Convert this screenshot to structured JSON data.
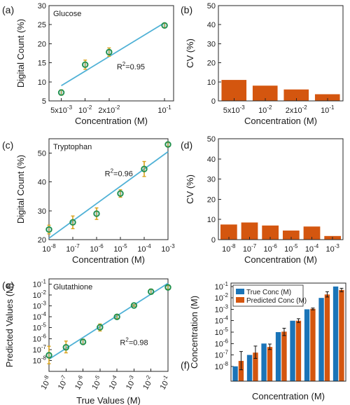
{
  "chart_data": [
    {
      "panel_label": "(a)",
      "title": "Glucose",
      "type": "scatter",
      "xscale": "log",
      "xlim": [
        0.0035,
        0.13
      ],
      "xticks": [
        {
          "v": 0.005,
          "label": "5x10",
          "sup": "-3"
        },
        {
          "v": 0.01,
          "label": "10",
          "sup": "-2"
        },
        {
          "v": 0.02,
          "label": "2x10",
          "sup": "-2"
        },
        {
          "v": 0.1,
          "label": "10",
          "sup": "-1"
        }
      ],
      "ylim": [
        5,
        30
      ],
      "yticks": [
        5,
        10,
        15,
        20,
        25,
        30
      ],
      "xlabel": "Concentration (M)",
      "ylabel": "Digital Count (%)",
      "points": [
        {
          "x": 0.005,
          "y": 7.2,
          "err": 0.7
        },
        {
          "x": 0.01,
          "y": 14.5,
          "err": 1.2
        },
        {
          "x": 0.02,
          "y": 17.8,
          "err": 1.1
        },
        {
          "x": 0.1,
          "y": 24.8,
          "err": 0.6
        }
      ],
      "fit": {
        "x": [
          0.005,
          0.1
        ],
        "y": [
          9.0,
          25.5
        ]
      },
      "annotation": {
        "text": "R",
        "sup": "2",
        "tail": "=0.95",
        "x": 0.025,
        "y": 13.3
      },
      "colors": {
        "marker": "#2fa5c8",
        "marker_edge": "#1f8f4a",
        "error": "#d9a21b",
        "fit": "#4fb1d6"
      }
    },
    {
      "panel_label": "(b)",
      "type": "bar",
      "categories": [
        {
          "label": "5x10",
          "sup": "-3"
        },
        {
          "label": "10",
          "sup": "-2"
        },
        {
          "label": "2x10",
          "sup": "-2"
        },
        {
          "label": "10",
          "sup": "-1"
        }
      ],
      "values": [
        11.0,
        8.0,
        6.0,
        3.5
      ],
      "ylim": [
        0,
        50
      ],
      "yticks": [
        0,
        10,
        20,
        30,
        40,
        50
      ],
      "xlabel": "Concentration (M)",
      "ylabel": "CV (%)",
      "colors": {
        "bar": "#d4560f"
      }
    },
    {
      "panel_label": "(c)",
      "title": "Tryptophan",
      "type": "scatter",
      "xscale": "log",
      "xlim": [
        1e-08,
        0.001
      ],
      "xticks": [
        {
          "v": 1e-08,
          "label": "10",
          "sup": "-8"
        },
        {
          "v": 1e-07,
          "label": "10",
          "sup": "-7"
        },
        {
          "v": 1e-06,
          "label": "10",
          "sup": "-6"
        },
        {
          "v": 1e-05,
          "label": "10",
          "sup": "-5"
        },
        {
          "v": 0.0001,
          "label": "10",
          "sup": "-4"
        },
        {
          "v": 0.001,
          "label": "10",
          "sup": "-3"
        }
      ],
      "ylim": [
        20,
        55
      ],
      "yticks": [
        20,
        30,
        40,
        50
      ],
      "xlabel": "Concentration (M)",
      "ylabel": "Digital Count (%)",
      "points": [
        {
          "x": 1e-08,
          "y": 23.5,
          "err": 1.5
        },
        {
          "x": 1e-07,
          "y": 26.0,
          "err": 2.2
        },
        {
          "x": 1e-06,
          "y": 29.0,
          "err": 2.0
        },
        {
          "x": 1e-05,
          "y": 36.0,
          "err": 1.3
        },
        {
          "x": 0.0001,
          "y": 44.5,
          "err": 2.6
        },
        {
          "x": 0.001,
          "y": 53.0,
          "err": 0.6
        }
      ],
      "fit": {
        "x": [
          1e-08,
          0.001
        ],
        "y": [
          20.5,
          50.5
        ]
      },
      "annotation": {
        "text": "R",
        "sup": "2",
        "tail": "=0.96",
        "x": 2.2e-06,
        "y": 42.0
      },
      "colors": {
        "marker": "#2fa5c8",
        "marker_edge": "#1f8f4a",
        "error": "#d9a21b",
        "fit": "#4fb1d6"
      }
    },
    {
      "panel_label": "(d)",
      "type": "bar",
      "categories": [
        {
          "label": "10",
          "sup": "-8"
        },
        {
          "label": "10",
          "sup": "-7"
        },
        {
          "label": "10",
          "sup": "-6"
        },
        {
          "label": "10",
          "sup": "-5"
        },
        {
          "label": "10",
          "sup": "-4"
        },
        {
          "label": "10",
          "sup": "-3"
        }
      ],
      "values": [
        7.5,
        8.5,
        7.0,
        4.5,
        6.5,
        1.8
      ],
      "ylim": [
        0,
        50
      ],
      "yticks": [
        0,
        10,
        20,
        30,
        40,
        50
      ],
      "xlabel": "Concentration (M)",
      "ylabel": "CV (%)",
      "colors": {
        "bar": "#d4560f"
      }
    },
    {
      "panel_label": "(e)",
      "title": "Glutathione",
      "type": "scatter",
      "xscale": "log",
      "yscale": "log",
      "xlim": [
        1e-08,
        0.1
      ],
      "ylim": [
        1e-09,
        0.3
      ],
      "xticks": [
        {
          "v": 1e-08,
          "label": "10",
          "sup": "-8"
        },
        {
          "v": 1e-07,
          "label": "10",
          "sup": "-7"
        },
        {
          "v": 1e-06,
          "label": "10",
          "sup": "-6"
        },
        {
          "v": 1e-05,
          "label": "10",
          "sup": "-5"
        },
        {
          "v": 0.0001,
          "label": "10",
          "sup": "-4"
        },
        {
          "v": 0.001,
          "label": "10",
          "sup": "-3"
        },
        {
          "v": 0.01,
          "label": "10",
          "sup": "-2"
        },
        {
          "v": 0.1,
          "label": "10",
          "sup": "-1"
        }
      ],
      "yticks": [
        {
          "v": 1e-08,
          "label": "10",
          "sup": "-8"
        },
        {
          "v": 1e-07,
          "label": "10",
          "sup": "-7"
        },
        {
          "v": 1e-06,
          "label": "10",
          "sup": "-6"
        },
        {
          "v": 1e-05,
          "label": "10",
          "sup": "-5"
        },
        {
          "v": 0.0001,
          "label": "10",
          "sup": "-4"
        },
        {
          "v": 0.001,
          "label": "10",
          "sup": "-3"
        },
        {
          "v": 0.01,
          "label": "10",
          "sup": "-2"
        },
        {
          "v": 0.1,
          "label": "10",
          "sup": "-1"
        }
      ],
      "xlabel": "True Values (M)",
      "ylabel": "Predicted Values (M)",
      "points": [
        {
          "x": 1e-08,
          "y": 3e-08,
          "lo": 5e-09,
          "hi": 2e-07
        },
        {
          "x": 1e-07,
          "y": 1.6e-07,
          "lo": 5e-08,
          "hi": 6e-07
        },
        {
          "x": 1e-06,
          "y": 5e-07,
          "lo": 3e-07,
          "hi": 9e-07
        },
        {
          "x": 1e-05,
          "y": 1.1e-05,
          "lo": 5e-06,
          "hi": 2.2e-05
        },
        {
          "x": 0.0001,
          "y": 0.0001,
          "lo": 7e-05,
          "hi": 0.00015
        },
        {
          "x": 0.001,
          "y": 0.0011,
          "lo": 0.0009,
          "hi": 0.0013
        },
        {
          "x": 0.01,
          "y": 0.02,
          "lo": 0.012,
          "hi": 0.035
        },
        {
          "x": 0.1,
          "y": 0.05,
          "lo": 0.035,
          "hi": 0.07
        }
      ],
      "fit": {
        "x": [
          1e-08,
          0.1
        ],
        "y": [
          1.3e-08,
          0.12
        ]
      },
      "annotation": {
        "text": "R",
        "sup": "2",
        "tail": "=0.98",
        "x": 0.00015,
        "y": 2.5e-07
      },
      "colors": {
        "marker": "#2fa5c8",
        "marker_edge": "#1f8f4a",
        "error": "#d9a21b",
        "fit": "#4fb1d6"
      }
    },
    {
      "panel_label": "(f)",
      "type": "bar",
      "yscale": "log",
      "ylim": [
        5e-10,
        0.2
      ],
      "yticks": [
        {
          "v": 1e-08,
          "label": "10",
          "sup": "-8"
        },
        {
          "v": 1e-07,
          "label": "10",
          "sup": "-7"
        },
        {
          "v": 1e-06,
          "label": "10",
          "sup": "-6"
        },
        {
          "v": 1e-05,
          "label": "10",
          "sup": "-5"
        },
        {
          "v": 0.0001,
          "label": "10",
          "sup": "-4"
        },
        {
          "v": 0.001,
          "label": "10",
          "sup": "-3"
        },
        {
          "v": 0.01,
          "label": "10",
          "sup": "-2"
        },
        {
          "v": 0.1,
          "label": "10",
          "sup": "-1"
        }
      ],
      "xlabel": "Concentration (M)",
      "ylabel": "Concentration (M)",
      "series": [
        {
          "name": "True Conc (M)",
          "color": "#1a74b8",
          "values": [
            1e-08,
            1e-07,
            1e-06,
            1e-05,
            0.0001,
            0.001,
            0.01,
            0.1
          ]
        },
        {
          "name": "Predicted Conc (M)",
          "color": "#d4560f",
          "values": [
            3e-08,
            1.6e-07,
            5e-07,
            1.1e-05,
            0.0001,
            0.0011,
            0.02,
            0.05
          ],
          "lo": [
            5e-09,
            5e-08,
            3e-07,
            5e-06,
            7e-05,
            0.0009,
            0.012,
            0.035
          ],
          "hi": [
            2e-07,
            6e-07,
            9e-07,
            2.2e-05,
            0.00015,
            0.0013,
            0.035,
            0.07
          ]
        }
      ],
      "legend_position": "top-left"
    }
  ]
}
